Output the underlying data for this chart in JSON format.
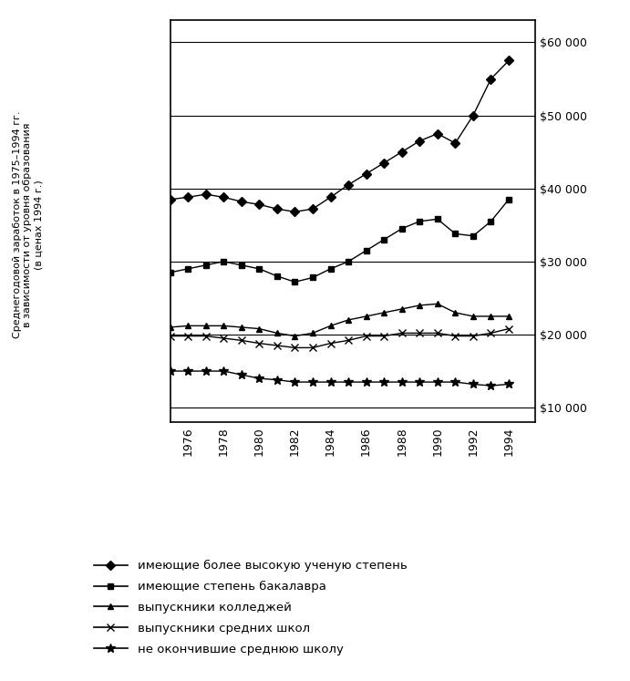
{
  "years": [
    1975,
    1976,
    1977,
    1978,
    1979,
    1980,
    1981,
    1982,
    1983,
    1984,
    1985,
    1986,
    1987,
    1988,
    1989,
    1990,
    1991,
    1992,
    1993,
    1994
  ],
  "advanced_degree": [
    38500,
    38800,
    39200,
    38800,
    38200,
    37800,
    37200,
    36800,
    37200,
    38800,
    40500,
    42000,
    43500,
    45000,
    46500,
    47500,
    46200,
    50000,
    55000,
    57500
  ],
  "bachelors": [
    28500,
    29000,
    29500,
    30000,
    29500,
    29000,
    28000,
    27200,
    27800,
    29000,
    30000,
    31500,
    33000,
    34500,
    35500,
    35800,
    33800,
    33500,
    35500,
    38500
  ],
  "some_college": [
    21000,
    21200,
    21200,
    21200,
    21000,
    20800,
    20200,
    19800,
    20200,
    21200,
    22000,
    22500,
    23000,
    23500,
    24000,
    24200,
    23000,
    22500,
    22500,
    22500
  ],
  "high_school": [
    19800,
    19800,
    19800,
    19500,
    19200,
    18800,
    18500,
    18200,
    18200,
    18800,
    19200,
    19800,
    19800,
    20200,
    20200,
    20200,
    19800,
    19800,
    20200,
    20800
  ],
  "no_hs": [
    15000,
    15000,
    15000,
    15000,
    14500,
    14000,
    13800,
    13500,
    13500,
    13500,
    13500,
    13500,
    13500,
    13500,
    13500,
    13500,
    13500,
    13200,
    13000,
    13200
  ],
  "ylabel_line1": "Среднегодовой заработок в 1975–1994 гг.",
  "ylabel_line2": "в зависимости от уровня образования",
  "ylabel_line3": "(в ценах 1994 г.)",
  "legend": [
    "имеющие более высокую ученую степень",
    "имеющие степень бакалавра",
    "выпускники колледжей",
    "выпускники средних школ",
    "не окончившие среднюю школу"
  ],
  "ytick_labels": [
    "$10 000",
    "$20 000",
    "$30 000",
    "$40 000",
    "$50 000",
    "$60 000"
  ],
  "yticks": [
    10000,
    20000,
    30000,
    40000,
    50000,
    60000
  ],
  "xticks": [
    1976,
    1978,
    1980,
    1982,
    1984,
    1986,
    1988,
    1990,
    1992,
    1994
  ],
  "ylim": [
    8000,
    63000
  ],
  "xlim": [
    1975,
    1995.5
  ]
}
